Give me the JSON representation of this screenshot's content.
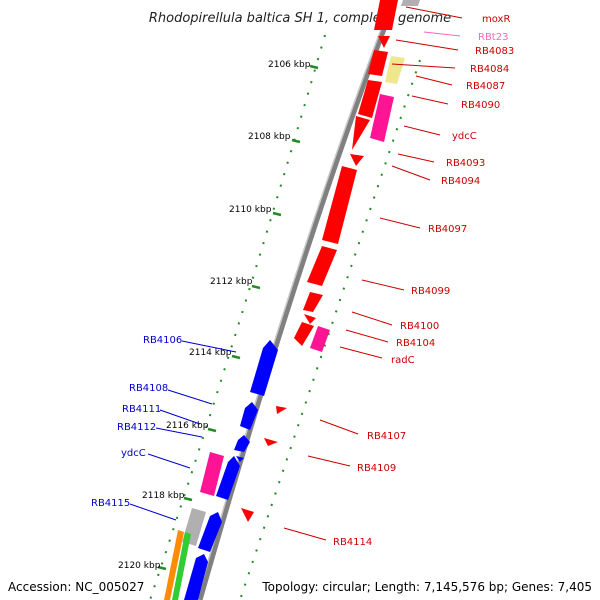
{
  "title": "Rhodopirellula baltica SH 1, complete genome",
  "footer": {
    "accession": "Accession: NC_005027",
    "topology": "Topology: circular; Length: 7,145,576 bp; Genes: 7,405"
  },
  "colors": {
    "backbone": "#777777",
    "forward_gene": "#ff0000",
    "reverse_gene": "#0000ff",
    "rna_gene": "#ff1493",
    "pseudo_gene": "#f0e68c",
    "other_gene": "#b0b0b0",
    "tick": "#228B22",
    "label_forward": "#cc0000",
    "label_reverse": "#0000cc",
    "label_rna": "#ff66bb"
  },
  "ticks": [
    {
      "kbp": 2106,
      "label": "2106 kbp"
    },
    {
      "kbp": 2108,
      "label": "2108 kbp"
    },
    {
      "kbp": 2110,
      "label": "2110 kbp"
    },
    {
      "kbp": 2112,
      "label": "2112 kbp"
    },
    {
      "kbp": 2114,
      "label": "2114 kbp"
    },
    {
      "kbp": 2116,
      "label": "2116 kbp"
    },
    {
      "kbp": 2118,
      "label": "2118 kbp"
    },
    {
      "kbp": 2120,
      "label": "2120 kbp"
    }
  ],
  "forward_labels": [
    "moxR",
    "RBt23",
    "RB4083",
    "RB4084",
    "RB4087",
    "RB4090",
    "ydcC",
    "RB4093",
    "RB4094",
    "RB4097",
    "RB4099",
    "RB4100",
    "RB4104",
    "radC",
    "RB4107",
    "RB4109",
    "RB4114"
  ],
  "reverse_labels": [
    "RB4106",
    "RB4108",
    "RB4111",
    "RB4112",
    "ydcC",
    "RB4115"
  ]
}
